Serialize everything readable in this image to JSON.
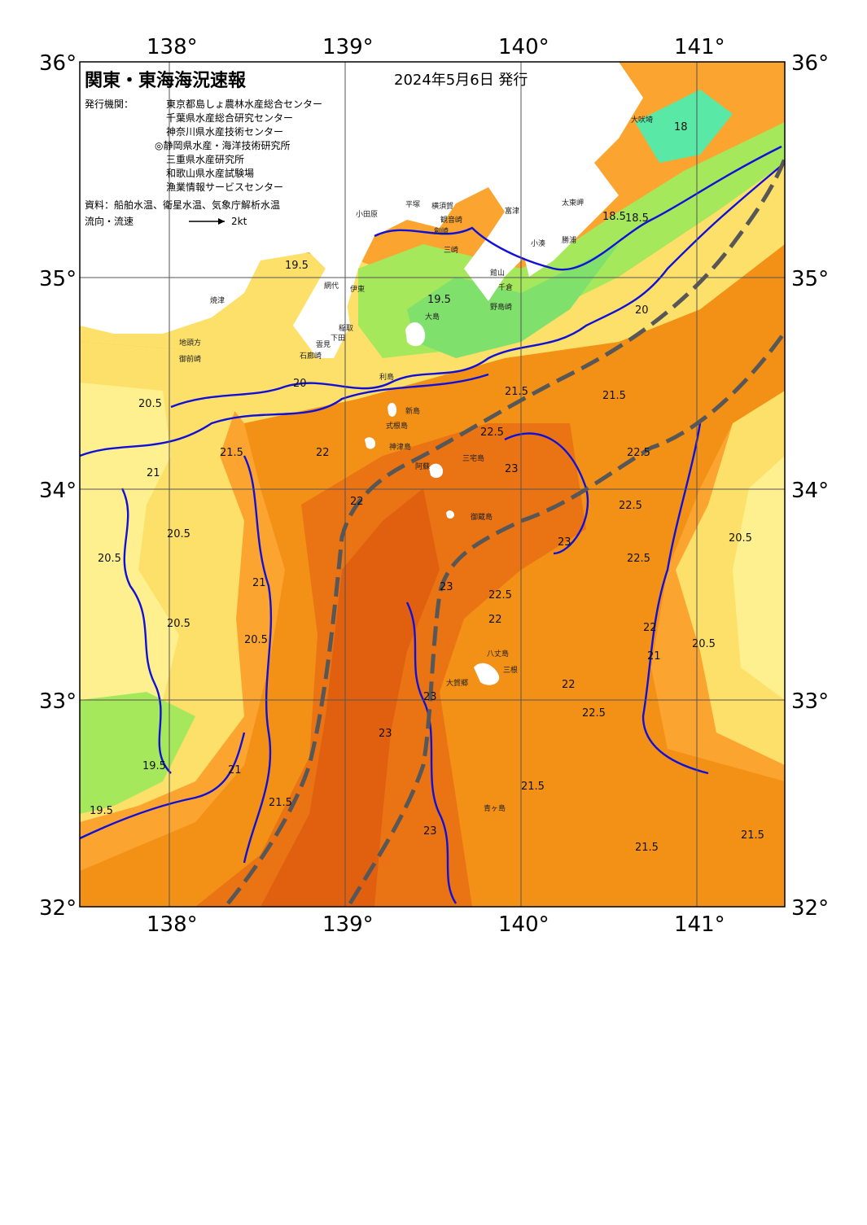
{
  "header": {
    "title": "関東・東海海況速報",
    "date": "2024年5月6日 発行",
    "issuer_label": "発行機関：",
    "issuers": [
      "東京都島しょ農林水産総合センター",
      "千葉県水産総合研究センター",
      "神奈川県水産技術センター",
      "◎静岡県水産・海洋技術研究所",
      "三重県水産研究所",
      "和歌山県水産試験場",
      "漁業情報サービスセンター"
    ],
    "source": "資料：船舶水温、衛星水温、気象庁解析水温",
    "flow_label": "流向・流速",
    "flow_scale": "2kt"
  },
  "axes": {
    "lon_labels": [
      "138°",
      "139°",
      "140°",
      "141°"
    ],
    "lat_labels": [
      "36°",
      "35°",
      "34°",
      "33°",
      "32°"
    ]
  },
  "colors": {
    "ocean_base": "#fba530",
    "warm": "#f39117",
    "warmer": "#ea7314",
    "hot": "#e0600f",
    "cool": "#fde06a",
    "cooler": "#fef08e",
    "green": "#a6e85c",
    "green_dark": "#7fe16b",
    "cyan": "#59e8a6",
    "land": "#ffffff",
    "current_line": "#575757",
    "isotherm": "#1010d8"
  },
  "isotherm_labels": [
    "19.5",
    "19.5",
    "19.5",
    "19.5",
    "20",
    "20",
    "20.5",
    "20.5",
    "20.5",
    "20.5",
    "20.5",
    "20.5",
    "20.5",
    "21",
    "21",
    "21",
    "21",
    "21.5",
    "21.5",
    "21.5",
    "21.5",
    "21.5",
    "21.5",
    "21.5",
    "22",
    "22",
    "22",
    "22",
    "22",
    "22.5",
    "22.5",
    "22.5",
    "22.5",
    "22.5",
    "22.5",
    "23",
    "23",
    "23",
    "23",
    "23",
    "23",
    "18",
    "18.5",
    "18.5"
  ],
  "place_names": [
    "大吠埼",
    "太東岬",
    "勝浦",
    "小湊",
    "野島崎",
    "千倉",
    "館山",
    "富津",
    "横須賀",
    "平塚",
    "小田原",
    "観音崎",
    "剣崎",
    "三崎",
    "大島",
    "利島",
    "新島",
    "式根島",
    "神津島",
    "三宅島",
    "阿蘇",
    "御蔵島",
    "八丈島",
    "三根",
    "大賀郷",
    "青ヶ島",
    "伊東",
    "網代",
    "稲取",
    "下田",
    "石廊崎",
    "雲見",
    "焼津",
    "地頭方",
    "御前崎"
  ]
}
